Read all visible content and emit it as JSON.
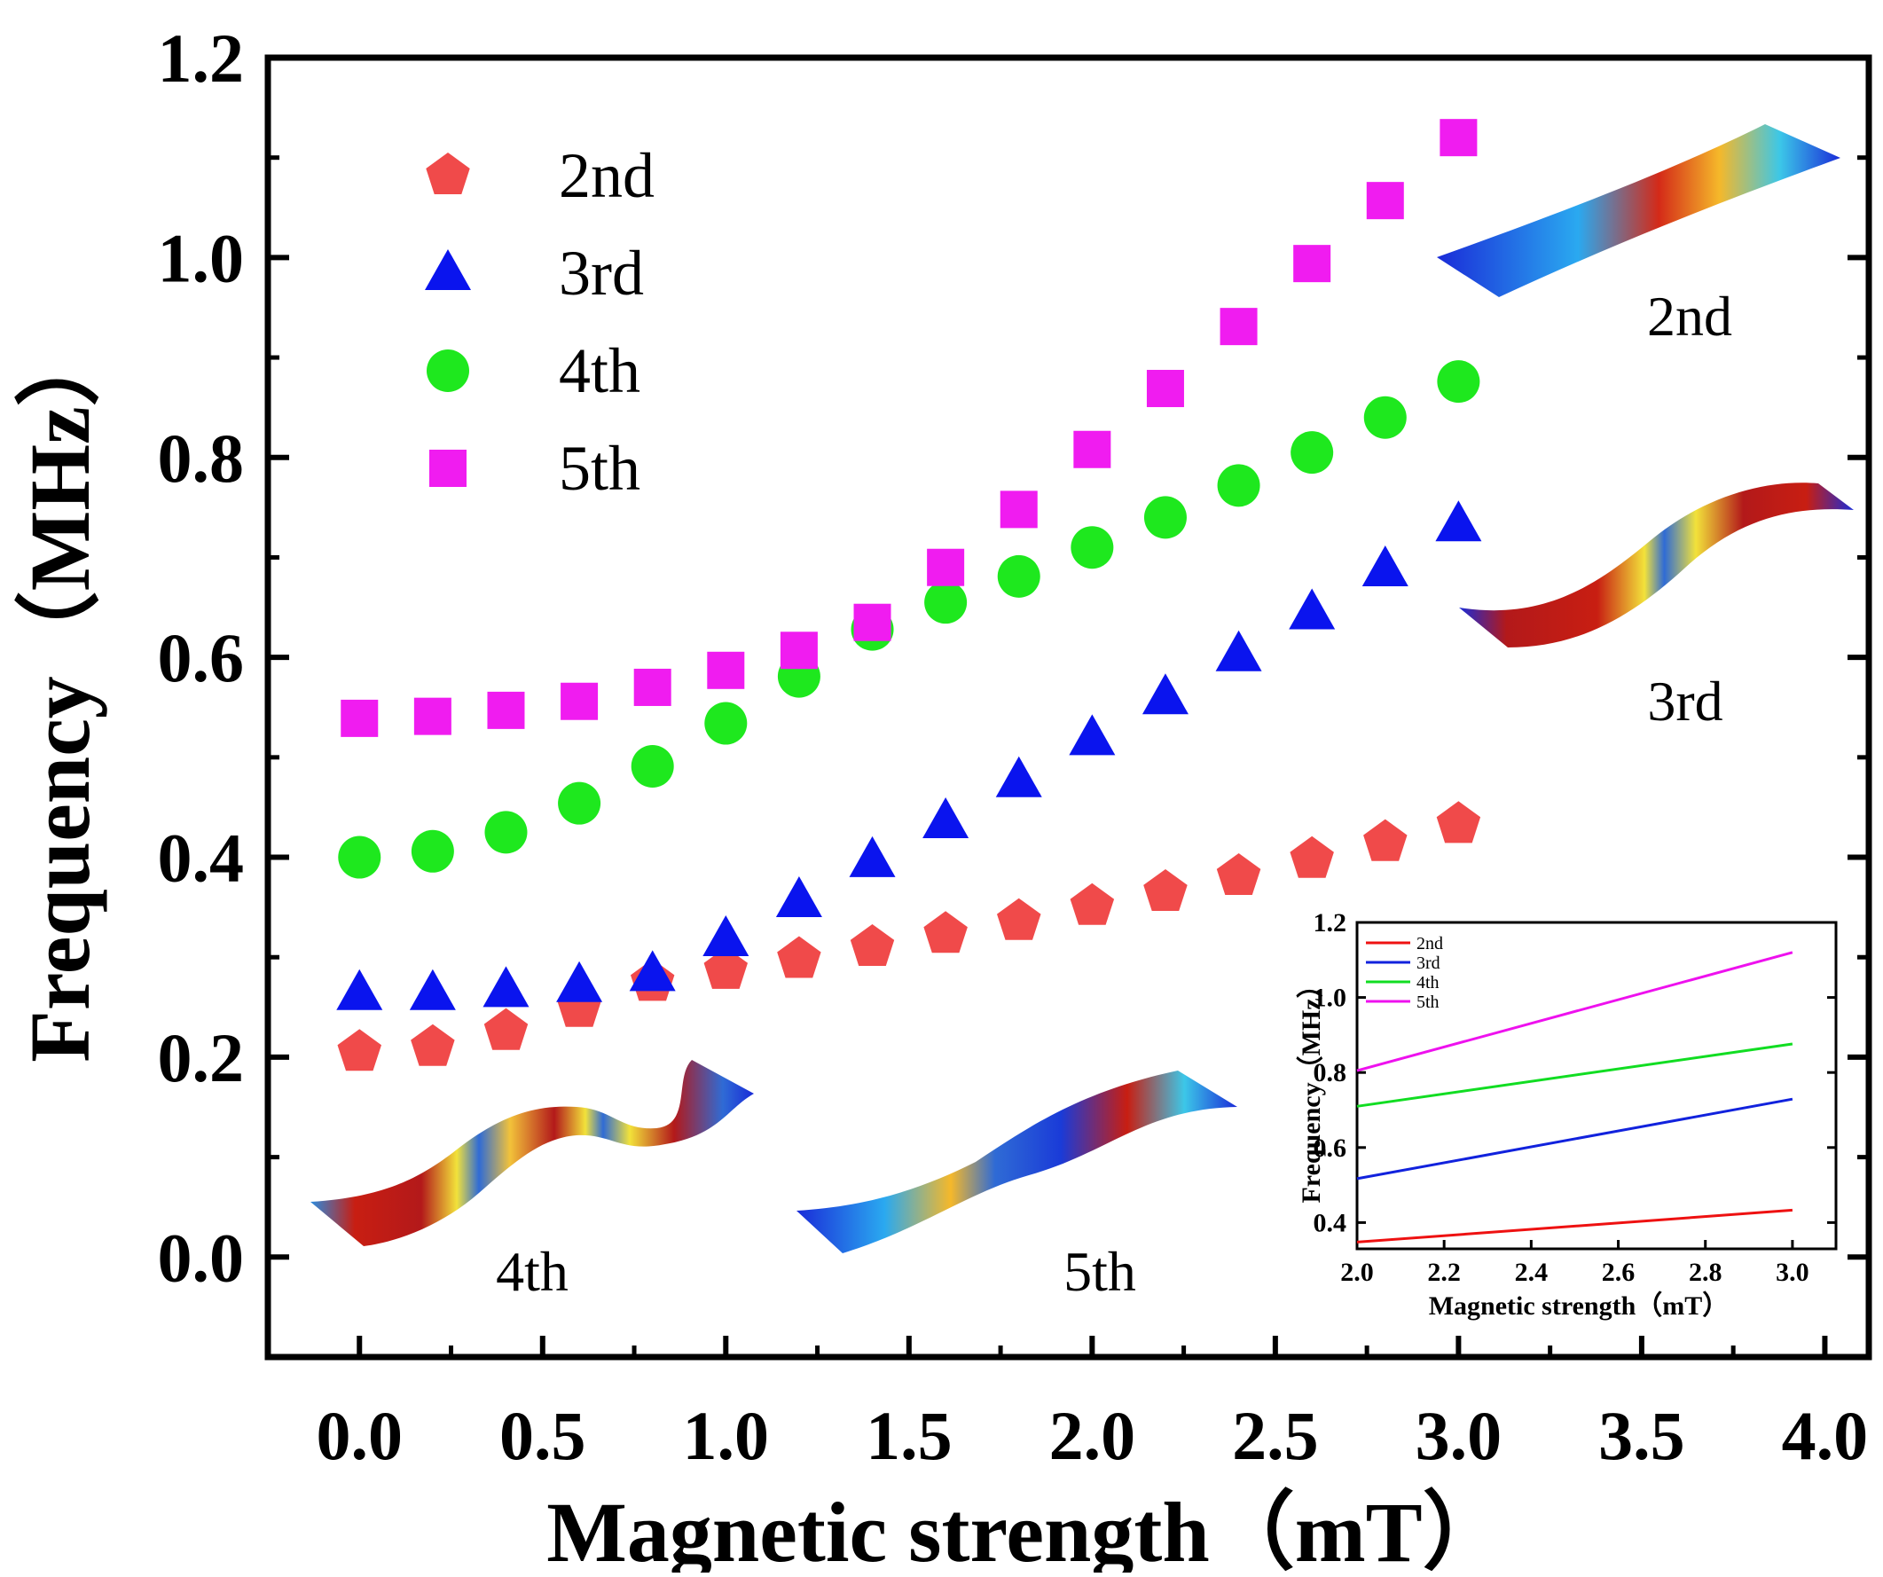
{
  "chart_data": [
    {
      "type": "scatter",
      "title": "",
      "xlabel": "Magnetic strength（mT）",
      "ylabel": "Frequency（MHz）",
      "xlim": [
        -0.25,
        4.12
      ],
      "ylim": [
        -0.1,
        1.2
      ],
      "x_ticks": [
        "0.0",
        "0.5",
        "1.0",
        "1.5",
        "2.0",
        "2.5",
        "3.0",
        "3.5",
        "4.0"
      ],
      "y_ticks": [
        "0.0",
        "0.2",
        "0.4",
        "0.6",
        "0.8",
        "1.0",
        "1.2"
      ],
      "x": [
        0.0,
        0.2,
        0.4,
        0.6,
        0.8,
        1.0,
        1.2,
        1.4,
        1.6,
        1.8,
        2.0,
        2.2,
        2.4,
        2.6,
        2.8,
        3.0
      ],
      "series": [
        {
          "name": "2nd",
          "marker": "pentagon",
          "color": "#f04a4a",
          "values": [
            0.205,
            0.21,
            0.226,
            0.249,
            0.275,
            0.287,
            0.298,
            0.31,
            0.323,
            0.336,
            0.351,
            0.365,
            0.381,
            0.398,
            0.415,
            0.433
          ]
        },
        {
          "name": "3rd",
          "marker": "triangle",
          "color": "#0a14ee",
          "values": [
            0.264,
            0.264,
            0.267,
            0.272,
            0.283,
            0.318,
            0.357,
            0.397,
            0.436,
            0.477,
            0.519,
            0.56,
            0.603,
            0.645,
            0.688,
            0.733
          ]
        },
        {
          "name": "4th",
          "marker": "circle",
          "color": "#1ee81e",
          "values": [
            0.4,
            0.406,
            0.425,
            0.454,
            0.491,
            0.534,
            0.581,
            0.628,
            0.655,
            0.681,
            0.71,
            0.74,
            0.772,
            0.805,
            0.84,
            0.876
          ]
        },
        {
          "name": "5th",
          "marker": "square",
          "color": "#f01cf0",
          "values": [
            0.539,
            0.541,
            0.547,
            0.556,
            0.57,
            0.587,
            0.607,
            0.635,
            0.69,
            0.748,
            0.808,
            0.869,
            0.931,
            0.994,
            1.057,
            1.12
          ]
        }
      ],
      "legend_position": "top-left",
      "mode_shape_labels": [
        "2nd",
        "3rd",
        "4th",
        "5th"
      ]
    },
    {
      "type": "line",
      "title": "",
      "xlabel": "Magnetic strength（mT）",
      "ylabel": "Frequency（MHz）",
      "xlim": [
        2.0,
        3.1
      ],
      "ylim": [
        0.33,
        1.2
      ],
      "x_ticks": [
        "2.0",
        "2.2",
        "2.4",
        "2.6",
        "2.8",
        "3.0"
      ],
      "y_ticks": [
        "0.4",
        "0.6",
        "0.8",
        "1.0",
        "1.2"
      ],
      "x": [
        2.0,
        3.0
      ],
      "series": [
        {
          "name": "2nd",
          "color": "#ee1111",
          "values": [
            0.348,
            0.433
          ]
        },
        {
          "name": "3rd",
          "color": "#1122dd",
          "values": [
            0.517,
            0.729
          ]
        },
        {
          "name": "4th",
          "color": "#11dd22",
          "values": [
            0.71,
            0.876
          ]
        },
        {
          "name": "5th",
          "color": "#ee11ee",
          "values": [
            0.805,
            1.12
          ]
        }
      ],
      "legend_position": "top-left"
    }
  ]
}
